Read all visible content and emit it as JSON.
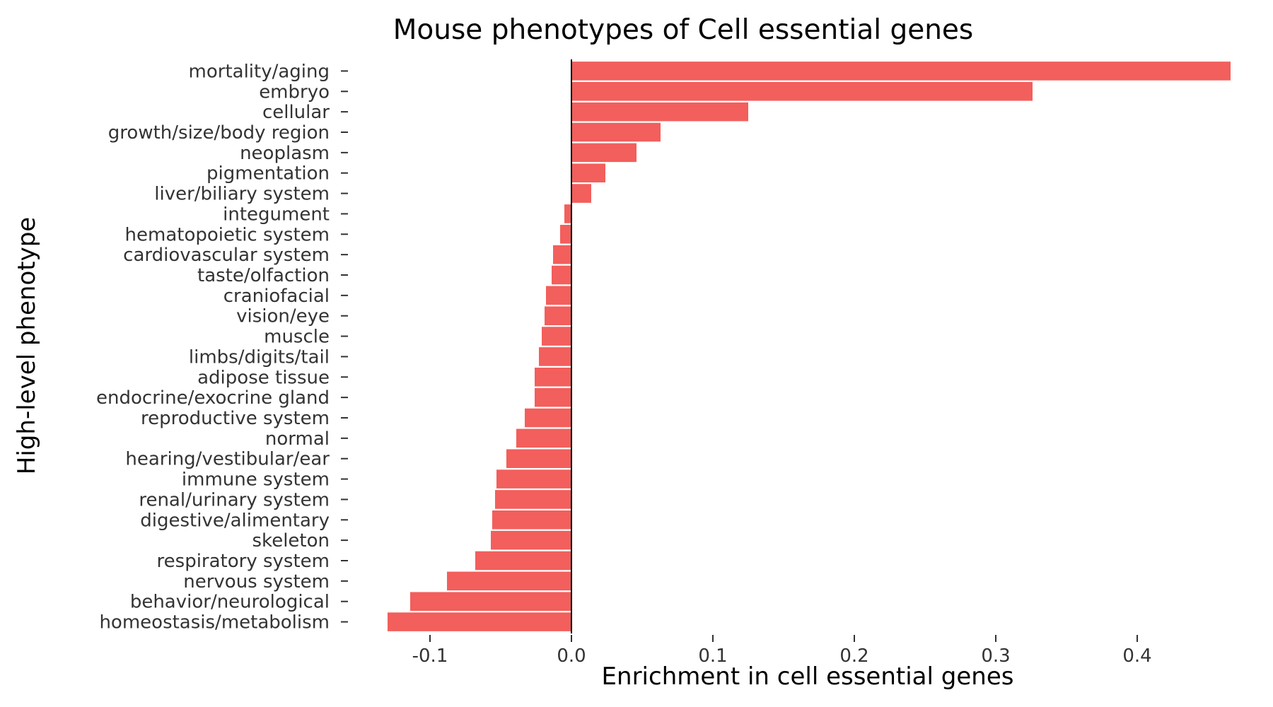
{
  "chart_data": {
    "type": "bar",
    "orientation": "horizontal",
    "title": "Mouse phenotypes of Cell essential genes",
    "xlabel": "Enrichment in cell essential genes",
    "ylabel": "High-level phenotype",
    "xlim": [
      -0.15,
      0.47
    ],
    "xticks": [
      -0.1,
      0.0,
      0.1,
      0.2,
      0.3,
      0.4
    ],
    "xtick_labels": [
      "-0.1",
      "0.0",
      "0.1",
      "0.2",
      "0.3",
      "0.4"
    ],
    "grid": false,
    "bar_color": "#F25F5C",
    "categories": [
      "mortality/aging",
      "embryo",
      "cellular",
      "growth/size/body region",
      "neoplasm",
      "pigmentation",
      "liver/biliary system",
      "integument",
      "hematopoietic system",
      "cardiovascular system",
      "taste/olfaction",
      "craniofacial",
      "vision/eye",
      "muscle",
      "limbs/digits/tail",
      "adipose tissue",
      "endocrine/exocrine gland",
      "reproductive system",
      "normal",
      "hearing/vestibular/ear",
      "immune system",
      "renal/urinary system",
      "digestive/alimentary",
      "skeleton",
      "respiratory system",
      "nervous system",
      "behavior/neurological",
      "homeostasis/metabolism"
    ],
    "values": [
      0.466,
      0.326,
      0.125,
      0.063,
      0.046,
      0.024,
      0.014,
      -0.005,
      -0.008,
      -0.013,
      -0.014,
      -0.018,
      -0.019,
      -0.021,
      -0.023,
      -0.026,
      -0.026,
      -0.033,
      -0.039,
      -0.046,
      -0.053,
      -0.054,
      -0.056,
      -0.057,
      -0.068,
      -0.088,
      -0.114,
      -0.13
    ]
  }
}
